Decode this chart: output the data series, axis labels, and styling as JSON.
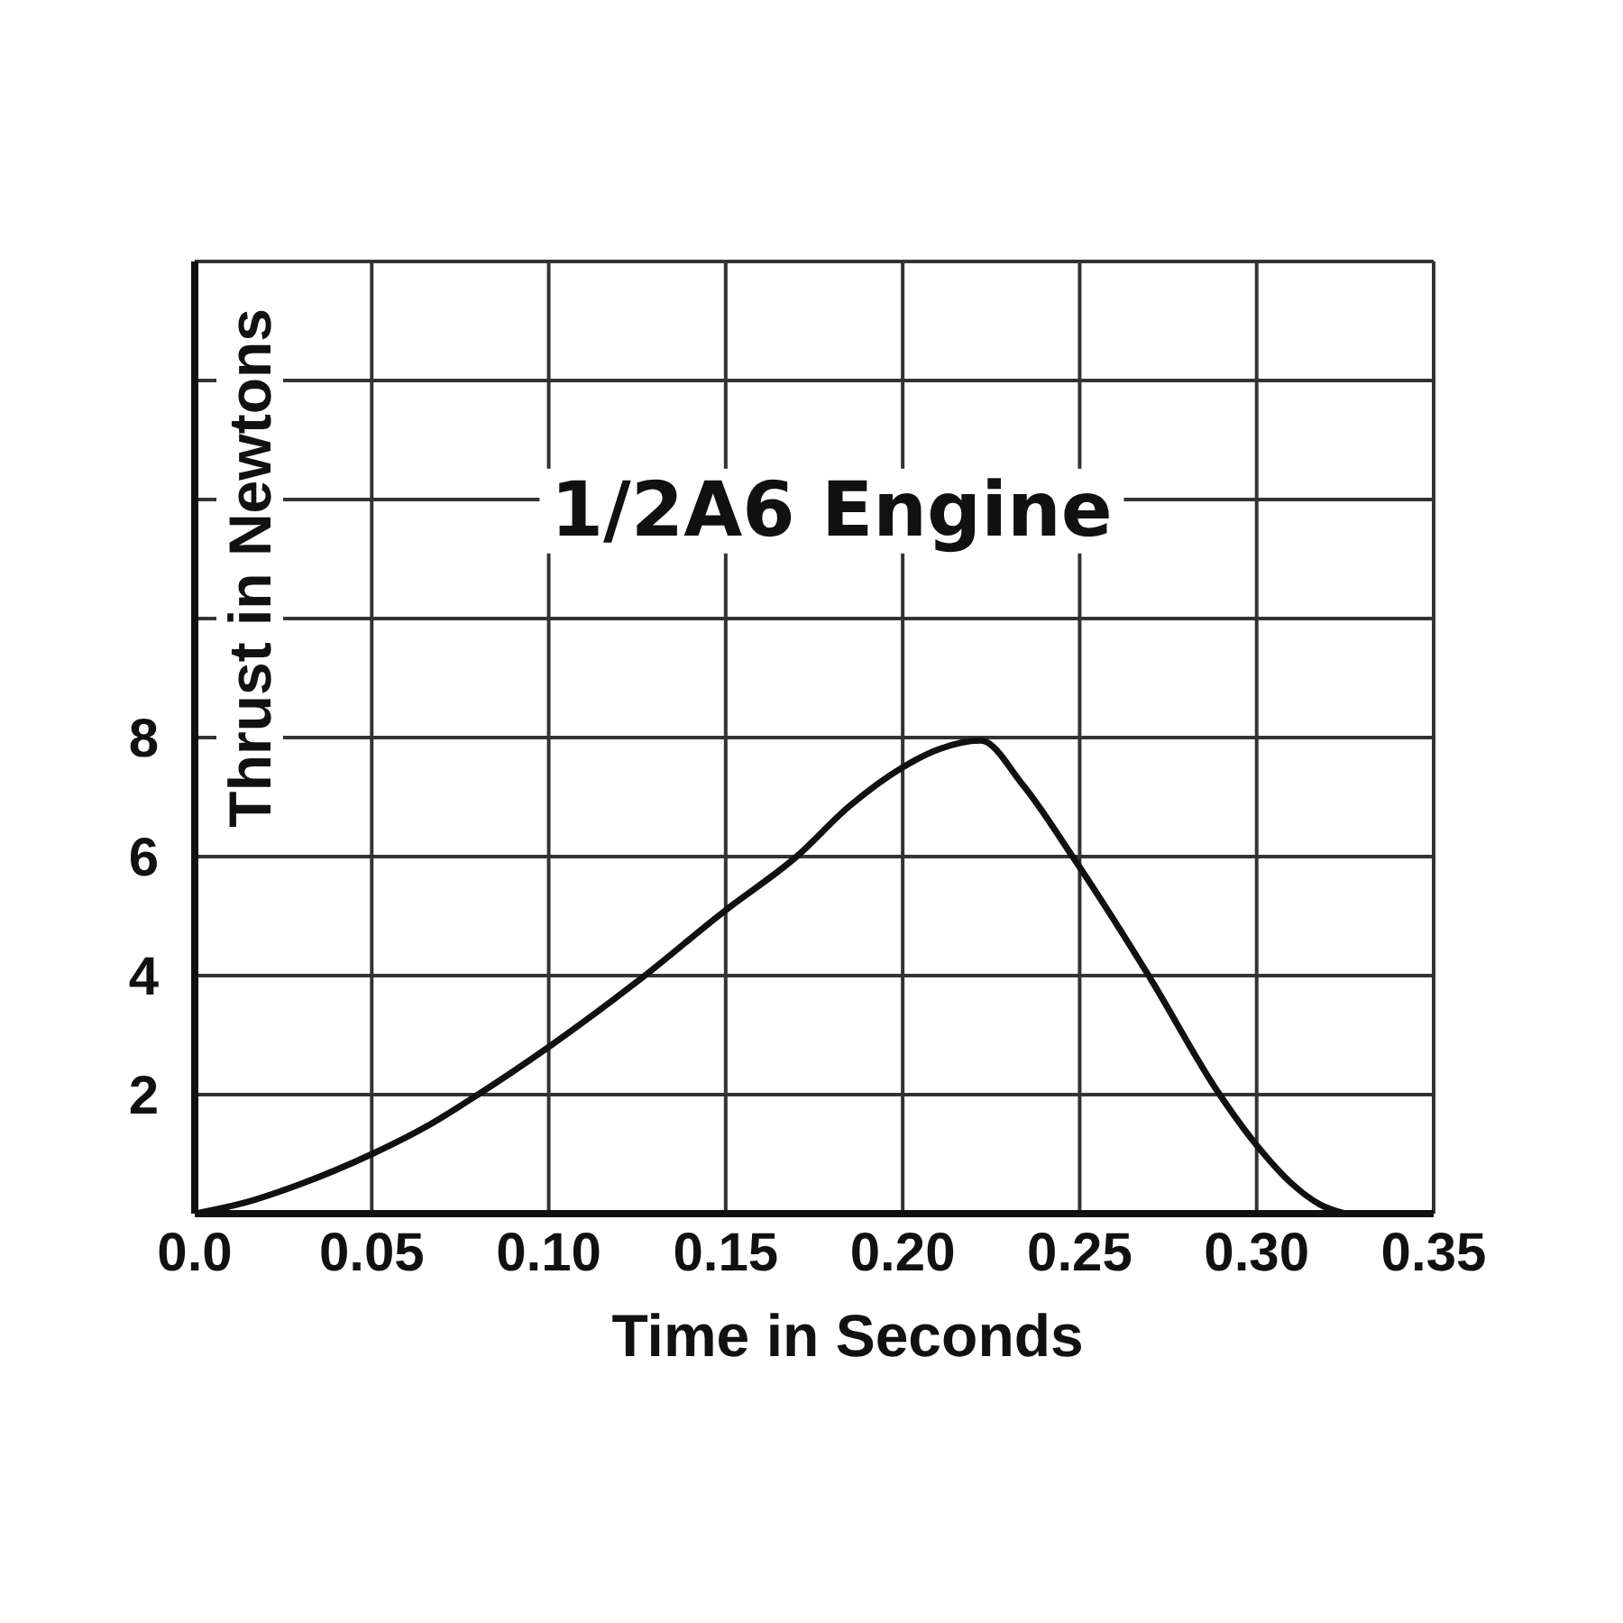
{
  "chart_data": {
    "type": "line",
    "title": "1/2A6 Engine",
    "xlabel": "Time in Seconds",
    "ylabel": "Thrust in Newtons",
    "x": [
      0,
      0.015,
      0.03,
      0.05,
      0.065,
      0.08,
      0.1,
      0.125,
      0.15,
      0.17,
      0.185,
      0.2,
      0.21,
      0.222,
      0.234,
      0.248,
      0.27,
      0.289,
      0.3,
      0.31,
      0.318,
      0.325
    ],
    "series": [
      {
        "color": "#111111",
        "values": [
          0,
          0.2,
          0.5,
          1.0,
          1.45,
          2.0,
          2.8,
          3.9,
          5.1,
          6.0,
          6.85,
          7.5,
          7.8,
          7.95,
          7.2,
          6.0,
          3.95,
          2.05,
          1.15,
          0.5,
          0.15,
          0
        ]
      }
    ],
    "xlim": [
      0,
      0.35
    ],
    "ylim": [
      0,
      16
    ],
    "xticks": [
      {
        "value": 0,
        "label": "0.0"
      },
      0.05,
      {
        "value": 0.1,
        "label": "0.10"
      },
      0.15,
      {
        "value": 0.2,
        "label": "0.20"
      },
      0.25,
      {
        "value": 0.3,
        "label": "0.30"
      },
      0.35
    ],
    "yticks": [
      2,
      4,
      6,
      8,
      {
        "value": 10,
        "label": null
      },
      {
        "value": 12,
        "label": null
      },
      {
        "value": 14,
        "label": null
      },
      {
        "value": 16,
        "label": null
      }
    ],
    "grid": true,
    "marker": "none",
    "line_style": "solid"
  }
}
